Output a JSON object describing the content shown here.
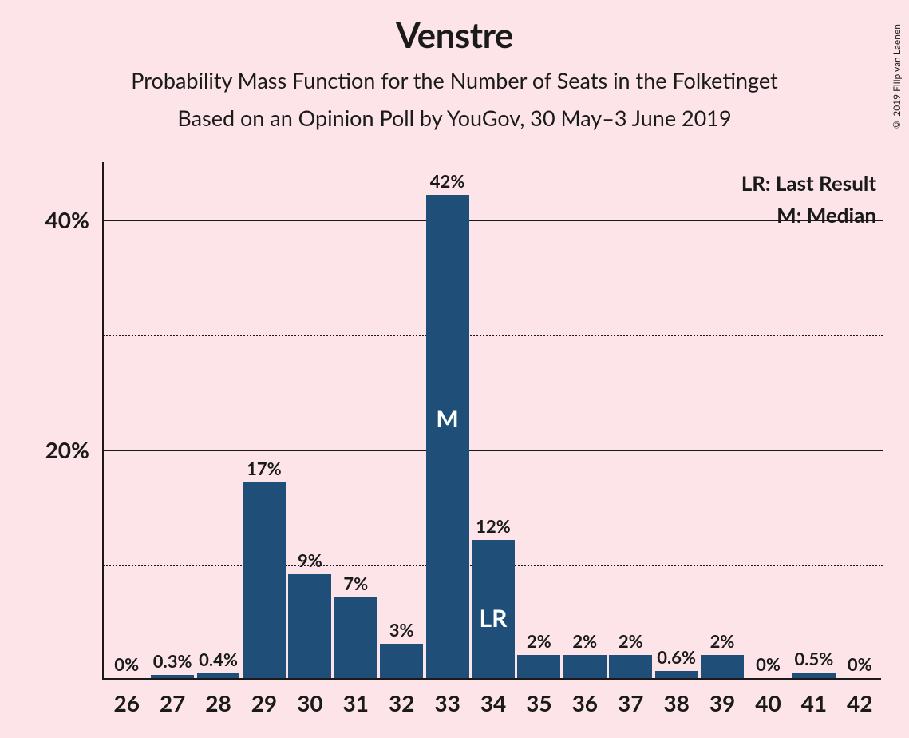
{
  "title": "Venstre",
  "subtitle": "Probability Mass Function for the Number of Seats in the Folketinget",
  "subtitle2": "Based on an Opinion Poll by YouGov, 30 May–3 June 2019",
  "copyright": "© 2019 Filip van Laenen",
  "legend": {
    "lr": "LR: Last Result",
    "m": "M: Median"
  },
  "chart": {
    "type": "bar",
    "background_color": "#fce4e9",
    "bar_color": "#1f4e79",
    "axis_color": "#1a1a1a",
    "text_color": "#1a1a1a",
    "ymax": 45,
    "y_major_ticks": [
      20,
      40
    ],
    "y_minor_ticks": [
      10,
      30
    ],
    "x_values": [
      26,
      27,
      28,
      29,
      30,
      31,
      32,
      33,
      34,
      35,
      36,
      37,
      38,
      39,
      40,
      41,
      42
    ],
    "bars": [
      {
        "x": 26,
        "v": 0,
        "label": "0%"
      },
      {
        "x": 27,
        "v": 0.3,
        "label": "0.3%"
      },
      {
        "x": 28,
        "v": 0.4,
        "label": "0.4%"
      },
      {
        "x": 29,
        "v": 17,
        "label": "17%"
      },
      {
        "x": 30,
        "v": 9,
        "label": "9%"
      },
      {
        "x": 31,
        "v": 7,
        "label": "7%"
      },
      {
        "x": 32,
        "v": 3,
        "label": "3%"
      },
      {
        "x": 33,
        "v": 42,
        "label": "42%",
        "in_label_m": "M"
      },
      {
        "x": 34,
        "v": 12,
        "label": "12%",
        "in_label_lr": "LR"
      },
      {
        "x": 35,
        "v": 2,
        "label": "2%"
      },
      {
        "x": 36,
        "v": 2,
        "label": "2%"
      },
      {
        "x": 37,
        "v": 2,
        "label": "2%"
      },
      {
        "x": 38,
        "v": 0.6,
        "label": "0.6%"
      },
      {
        "x": 39,
        "v": 2,
        "label": "2%"
      },
      {
        "x": 40,
        "v": 0,
        "label": "0%"
      },
      {
        "x": 41,
        "v": 0.5,
        "label": "0.5%"
      },
      {
        "x": 42,
        "v": 0,
        "label": "0%"
      }
    ],
    "bar_width_ratio": 0.94,
    "title_fontsize": 44,
    "subtitle_fontsize": 27,
    "axis_label_fontsize": 28,
    "bar_label_fontsize": 22,
    "inbar_fontsize": 30
  }
}
